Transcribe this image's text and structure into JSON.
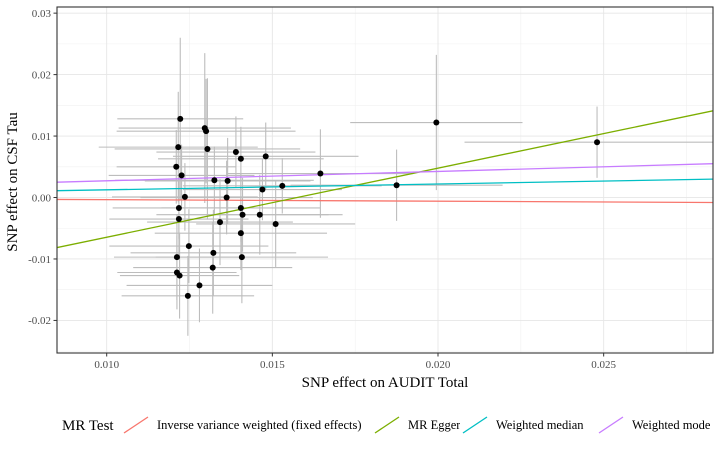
{
  "chart_data": {
    "type": "scatter",
    "xlabel": "SNP effect on AUDIT Total",
    "ylabel": "SNP effect on CSF Tau",
    "xlim": [
      0.0085,
      0.0283
    ],
    "ylim": [
      -0.0253,
      0.031
    ],
    "x_ticks": [
      0.01,
      0.015,
      0.02,
      0.025
    ],
    "x_tick_labels": [
      "0.010",
      "0.015",
      "0.020",
      "0.025"
    ],
    "y_ticks": [
      -0.02,
      -0.01,
      0.0,
      0.01,
      0.02,
      0.03
    ],
    "y_tick_labels": [
      "-0.02",
      "-0.01",
      "0.00",
      "0.01",
      "0.02",
      "0.03"
    ],
    "grid": true,
    "legend_position": "bottom",
    "legend_title": "MR Test",
    "points": [
      {
        "x": 0.01222,
        "y": 0.0128,
        "xerr": 0.0019,
        "yerr": 0.0132
      },
      {
        "x": 0.01296,
        "y": 0.0113,
        "xerr": 0.0026,
        "yerr": 0.0122
      },
      {
        "x": 0.013,
        "y": 0.0108,
        "xerr": 0.0027,
        "yerr": 0.0085
      },
      {
        "x": 0.01216,
        "y": 0.0082,
        "xerr": 0.0024,
        "yerr": 0.009
      },
      {
        "x": 0.01304,
        "y": 0.0079,
        "xerr": 0.0028,
        "yerr": 0.0115
      },
      {
        "x": 0.0139,
        "y": 0.0074,
        "xerr": 0.0024,
        "yerr": 0.0058
      },
      {
        "x": 0.01405,
        "y": 0.0063,
        "xerr": 0.0025,
        "yerr": 0.0052
      },
      {
        "x": 0.0148,
        "y": 0.0067,
        "xerr": 0.0028,
        "yerr": 0.0055
      },
      {
        "x": 0.0121,
        "y": 0.005,
        "xerr": 0.0018,
        "yerr": 0.006
      },
      {
        "x": 0.01226,
        "y": 0.0036,
        "xerr": 0.0022,
        "yerr": 0.005
      },
      {
        "x": 0.01645,
        "y": 0.0039,
        "xerr": 0.0028,
        "yerr": 0.0072
      },
      {
        "x": 0.01325,
        "y": 0.0028,
        "xerr": 0.003,
        "yerr": 0.0055
      },
      {
        "x": 0.01365,
        "y": 0.0027,
        "xerr": 0.0025,
        "yerr": 0.007
      },
      {
        "x": 0.0153,
        "y": 0.0019,
        "xerr": 0.003,
        "yerr": 0.0045
      },
      {
        "x": 0.0147,
        "y": 0.0013,
        "xerr": 0.0024,
        "yerr": 0.005
      },
      {
        "x": 0.01875,
        "y": 0.002,
        "xerr": 0.0032,
        "yerr": 0.0058
      },
      {
        "x": 0.01995,
        "y": 0.0122,
        "xerr": 0.0026,
        "yerr": 0.011
      },
      {
        "x": 0.0248,
        "y": 0.009,
        "xerr": 0.004,
        "yerr": 0.0058
      },
      {
        "x": 0.01236,
        "y": 0.0001,
        "xerr": 0.0022,
        "yerr": 0.0055
      },
      {
        "x": 0.01362,
        "y": 0.0,
        "xerr": 0.0026,
        "yerr": 0.006
      },
      {
        "x": 0.01405,
        "y": -0.0017,
        "xerr": 0.0024,
        "yerr": 0.0055
      },
      {
        "x": 0.01218,
        "y": -0.0017,
        "xerr": 0.002,
        "yerr": 0.005
      },
      {
        "x": 0.0141,
        "y": -0.0028,
        "xerr": 0.0026,
        "yerr": 0.006
      },
      {
        "x": 0.01462,
        "y": -0.0028,
        "xerr": 0.0025,
        "yerr": 0.0065
      },
      {
        "x": 0.01218,
        "y": -0.0035,
        "xerr": 0.0021,
        "yerr": 0.0065
      },
      {
        "x": 0.01342,
        "y": -0.004,
        "xerr": 0.0022,
        "yerr": 0.007
      },
      {
        "x": 0.0151,
        "y": -0.0043,
        "xerr": 0.0024,
        "yerr": 0.007
      },
      {
        "x": 0.01405,
        "y": -0.0058,
        "xerr": 0.0026,
        "yerr": 0.006
      },
      {
        "x": 0.01248,
        "y": -0.0079,
        "xerr": 0.0024,
        "yerr": 0.006
      },
      {
        "x": 0.01322,
        "y": -0.009,
        "xerr": 0.0025,
        "yerr": 0.007
      },
      {
        "x": 0.01212,
        "y": -0.0097,
        "xerr": 0.0019,
        "yerr": 0.007
      },
      {
        "x": 0.01408,
        "y": -0.0097,
        "xerr": 0.0026,
        "yerr": 0.0075
      },
      {
        "x": 0.0132,
        "y": -0.0114,
        "xerr": 0.0024,
        "yerr": 0.0075
      },
      {
        "x": 0.01212,
        "y": -0.0122,
        "xerr": 0.0018,
        "yerr": 0.006
      },
      {
        "x": 0.0122,
        "y": -0.0127,
        "xerr": 0.0018,
        "yerr": 0.007
      },
      {
        "x": 0.0128,
        "y": -0.0143,
        "xerr": 0.0022,
        "yerr": 0.006
      },
      {
        "x": 0.01245,
        "y": -0.016,
        "xerr": 0.002,
        "yerr": 0.0065
      }
    ],
    "series": [
      {
        "name": "Inverse variance weighted (fixed effects)",
        "color": "#F8766D",
        "intercept": -0.0001,
        "slope": -0.025
      },
      {
        "name": "MR Egger",
        "color": "#7CAE00",
        "intercept": -0.0177,
        "slope": 1.124
      },
      {
        "name": "Weighted median",
        "color": "#00BFC4",
        "intercept": 0.0003,
        "slope": 0.095
      },
      {
        "name": "Weighted mode",
        "color": "#C77CFF",
        "intercept": 0.0012,
        "slope": 0.152
      }
    ]
  }
}
